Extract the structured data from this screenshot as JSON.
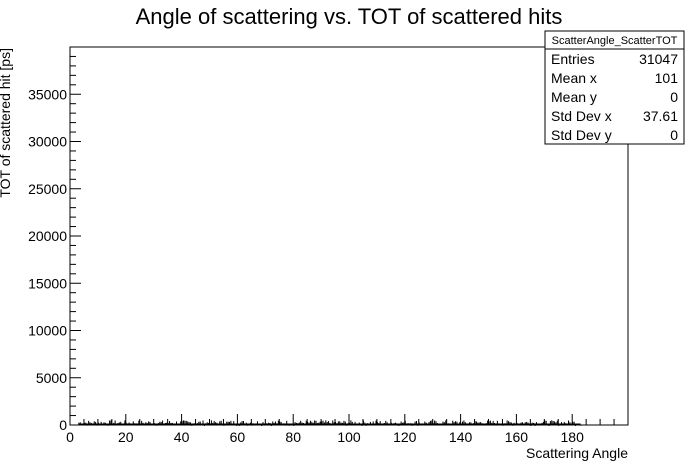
{
  "chart_data": {
    "type": "scatter",
    "title": "Angle of scattering vs. TOT of scattered hits",
    "xlabel": "Scattering Angle",
    "ylabel": "TOT of scattered hit [ps]",
    "xlim": [
      0,
      200
    ],
    "ylim": [
      0,
      40000
    ],
    "x_ticks": [
      0,
      20,
      40,
      60,
      80,
      100,
      120,
      140,
      160,
      180
    ],
    "y_ticks": [
      0,
      5000,
      10000,
      15000,
      20000,
      25000,
      30000,
      35000
    ],
    "x_tick_labels": [
      "0",
      "20",
      "40",
      "60",
      "80",
      "100",
      "120",
      "140",
      "160",
      "180"
    ],
    "y_tick_labels": [
      "0",
      "5000",
      "10000",
      "15000",
      "20000",
      "25000",
      "30000",
      "35000"
    ],
    "band": {
      "x_range": [
        3,
        183
      ],
      "y_max": 500
    },
    "stats_box": {
      "name": "ScatterAngle_ScatterTOT",
      "rows": [
        {
          "label": "Entries",
          "value": "31047"
        },
        {
          "label": "Mean x",
          "value": "101"
        },
        {
          "label": "Mean y",
          "value": "0"
        },
        {
          "label": "Std Dev x",
          "value": "37.61"
        },
        {
          "label": "Std Dev y",
          "value": "0"
        }
      ]
    }
  },
  "colors": {
    "axis": "#000000",
    "points": "#000000",
    "background": "#ffffff"
  }
}
